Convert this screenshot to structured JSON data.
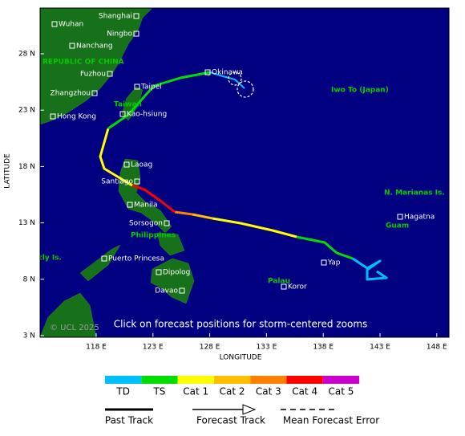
{
  "map": {
    "notice": "Click on forecast positions for storm-centered zooms",
    "copyright": "© UCL 2025",
    "axes": {
      "x_label": "LONGITUDE",
      "y_label": "LATITUDE",
      "x_ticks": [
        "118 E",
        "123 E",
        "128 E",
        "133 E",
        "138 E",
        "143 E",
        "148 E"
      ],
      "y_ticks": [
        "28 N",
        "23 N",
        "18 N",
        "13 N",
        "8 N",
        "3 N"
      ]
    },
    "cities": [
      "Wuhan",
      "Shanghai",
      "Ningbo",
      "Nanchang",
      "Fuzhou",
      "Taipei",
      "Zhangzhou",
      "Kao-hsiung",
      "Hong Kong",
      "Okinawa",
      "Laoag",
      "Santiago",
      "Manila",
      "Sorsogon",
      "Puerto Princesa",
      "Dipolog",
      "Davao",
      "Yap",
      "Koror",
      "Hagatna"
    ],
    "regions": [
      "REPUBLIC OF CHINA",
      "Taiwan",
      "Philippines",
      "Spratly Is.",
      "Iwo To (Japan)",
      "N. Marianas Is.",
      "Guam",
      "Palau"
    ],
    "legend": {
      "categories": [
        "TD",
        "TS",
        "Cat 1",
        "Cat 2",
        "Cat 3",
        "Cat 4",
        "Cat 5"
      ],
      "colors": [
        "#00bfff",
        "#00dd00",
        "#ffff00",
        "#ffbf00",
        "#ff7f00",
        "#ff0000",
        "#cc00cc"
      ],
      "lines": [
        "Past Track",
        "Forecast Track",
        "Mean Forecast Error"
      ]
    }
  }
}
